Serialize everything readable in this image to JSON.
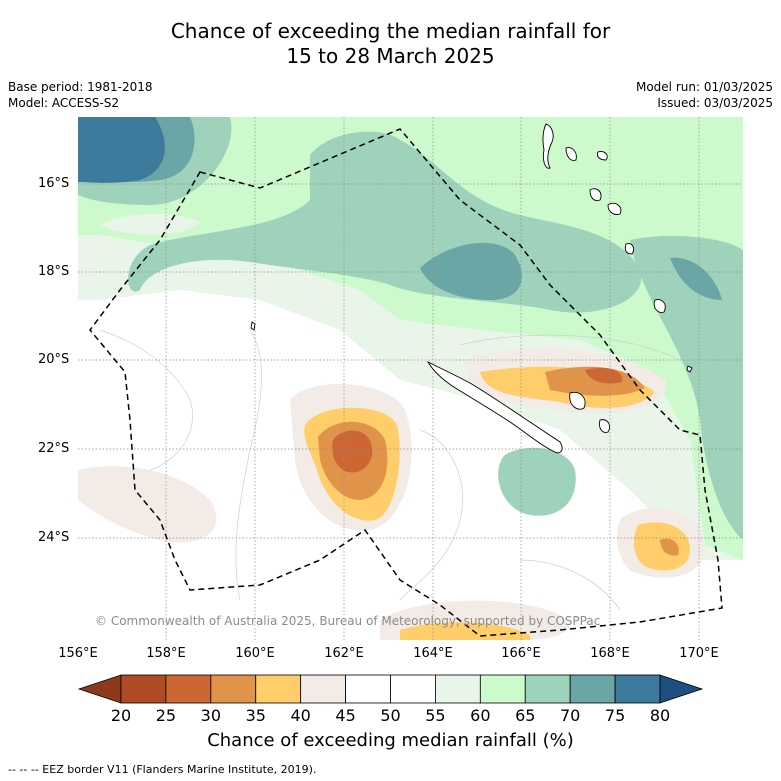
{
  "title": {
    "line1": "Chance of exceeding the median rainfall for",
    "line2": "15 to 28 March 2025"
  },
  "meta": {
    "base_period": "Base period: 1981-2018",
    "model": "Model: ACCESS-S2",
    "model_run": "Model run: 01/03/2025",
    "issued": "Issued: 03/03/2025"
  },
  "map": {
    "lat_labels": [
      "16°S",
      "18°S",
      "20°S",
      "22°S",
      "24°S"
    ],
    "lon_labels": [
      "156°E",
      "158°E",
      "160°E",
      "162°E",
      "164°E",
      "166°E",
      "168°E",
      "170°E"
    ],
    "copyright": "© Commonwealth of Australia 2025, Bureau of Meteorology, supported by COSPPac"
  },
  "colorbar": {
    "ticks": [
      "20",
      "25",
      "30",
      "35",
      "40",
      "45",
      "50",
      "55",
      "60",
      "65",
      "70",
      "75",
      "80"
    ],
    "colors": [
      "#8c3a1a",
      "#b04a24",
      "#cc6632",
      "#e0944a",
      "#ffcd6a",
      "#f2ebe6",
      "#ffffff",
      "#ffffff",
      "#eaf5ea",
      "#cdfacd",
      "#9fd2bb",
      "#6aa6a6",
      "#3d7a9c",
      "#1f4f80"
    ],
    "title": "Chance of exceeding median rainfall (%)"
  },
  "legend": {
    "eez": "--  --  -- EEZ border V11 (Flanders Marine Institute, 2019)."
  }
}
